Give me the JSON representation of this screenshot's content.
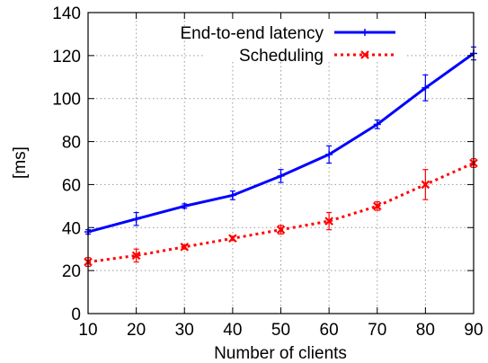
{
  "chart_data": {
    "type": "line",
    "xlabel": "Number of clients",
    "ylabel": "[ms]",
    "xlim": [
      10,
      90
    ],
    "ylim": [
      0,
      140
    ],
    "x_ticks": [
      "10",
      "20",
      "30",
      "40",
      "50",
      "60",
      "70",
      "80",
      "90"
    ],
    "y_ticks": [
      "0",
      "20",
      "40",
      "60",
      "80",
      "100",
      "120",
      "140"
    ],
    "grid": true,
    "legend_position": "top-right",
    "x": [
      10,
      20,
      30,
      40,
      50,
      60,
      70,
      80,
      90
    ],
    "series": [
      {
        "name": "End-to-end latency",
        "color": "#0000ff",
        "line_style": "solid",
        "marker": "plus",
        "values": [
          38,
          44,
          50,
          55,
          64,
          74,
          88,
          105,
          121
        ],
        "error": [
          1,
          3,
          1,
          2,
          3,
          4,
          2,
          6,
          3
        ]
      },
      {
        "name": "Scheduling",
        "color": "#ff0000",
        "line_style": "dotted",
        "marker": "x",
        "values": [
          24,
          27,
          31,
          35,
          39,
          43,
          50,
          60,
          70
        ],
        "error": [
          2,
          3,
          1,
          1,
          2,
          4,
          2,
          7,
          2
        ]
      }
    ]
  }
}
